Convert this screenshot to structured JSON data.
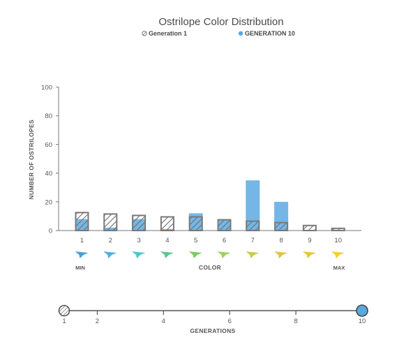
{
  "chart_data": {
    "type": "bar",
    "title": "Ostrilope Color Distribution",
    "ylabel": "NUMBER OF OSTRILOPES",
    "xlabel": "COLOR",
    "ylim": [
      0,
      100
    ],
    "yticks": [
      0,
      20,
      40,
      60,
      80,
      100
    ],
    "categories": [
      "1",
      "2",
      "3",
      "4",
      "5",
      "6",
      "7",
      "8",
      "9",
      "10"
    ],
    "series": [
      {
        "name": "Generation 1",
        "style": "hatched",
        "color": "#8a8a8a",
        "values": [
          13,
          12,
          11,
          10,
          10,
          8,
          7,
          6,
          4,
          2
        ]
      },
      {
        "name": "GENERATION 10",
        "style": "solid",
        "color": "#74b7e6",
        "values": [
          8,
          2,
          8,
          1,
          12,
          8,
          35,
          20,
          0,
          0
        ]
      }
    ],
    "color_swatches": [
      "#4a9fd8",
      "#4fb0dc",
      "#4cc6cc",
      "#59c98e",
      "#7bcc5e",
      "#9fd05a",
      "#c6cc4e",
      "#dbc63c",
      "#e5c834",
      "#f2d224"
    ],
    "color_scale_labels": {
      "min": "MIN",
      "max": "MAX"
    },
    "legend_placement": "top"
  },
  "generation_slider": {
    "label": "GENERATIONS",
    "ticks": [
      "1",
      "2",
      "4",
      "6",
      "8",
      "10"
    ],
    "min": 1,
    "max": 10,
    "value": 10
  }
}
